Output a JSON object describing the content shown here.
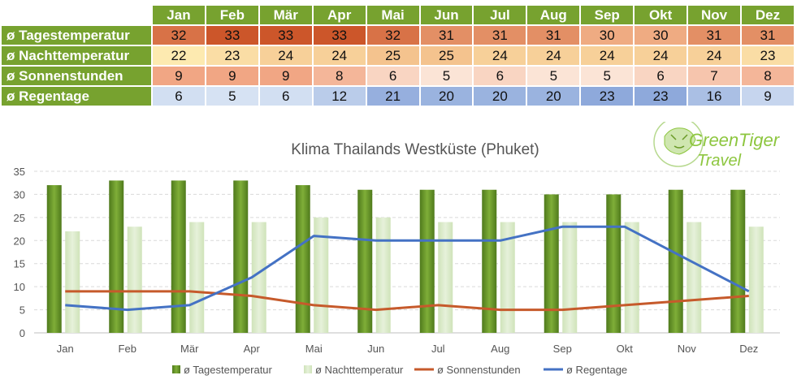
{
  "table": {
    "months": [
      "Jan",
      "Feb",
      "Mär",
      "Apr",
      "Mai",
      "Jun",
      "Jul",
      "Aug",
      "Sep",
      "Okt",
      "Nov",
      "Dez"
    ],
    "rows": [
      {
        "label": "ø Tagestemperatur",
        "values": [
          32,
          33,
          33,
          33,
          32,
          31,
          31,
          31,
          30,
          30,
          31,
          31
        ]
      },
      {
        "label": "ø Nachttemperatur",
        "values": [
          22,
          23,
          24,
          24,
          25,
          25,
          24,
          24,
          24,
          24,
          24,
          23
        ]
      },
      {
        "label": "ø Sonnenstunden",
        "values": [
          9,
          9,
          9,
          8,
          6,
          5,
          6,
          5,
          5,
          6,
          7,
          8
        ]
      },
      {
        "label": "ø Regentage",
        "values": [
          6,
          5,
          6,
          12,
          21,
          20,
          20,
          20,
          23,
          23,
          16,
          9
        ]
      }
    ]
  },
  "logo": {
    "line1": "GreenTiger",
    "line2": "Travel"
  },
  "chart_data": {
    "type": "bar",
    "title": "Klima Thailands Westküste (Phuket)",
    "categories": [
      "Jan",
      "Feb",
      "Mär",
      "Apr",
      "Mai",
      "Jun",
      "Jul",
      "Aug",
      "Sep",
      "Okt",
      "Nov",
      "Dez"
    ],
    "ylim": [
      0,
      35
    ],
    "yticks": [
      0,
      5,
      10,
      15,
      20,
      25,
      30,
      35
    ],
    "grid": true,
    "legend_position": "bottom",
    "series": [
      {
        "name": "ø Tagestemperatur",
        "type": "bar",
        "color": "#6a9a28",
        "values": [
          32,
          33,
          33,
          33,
          32,
          31,
          31,
          31,
          30,
          30,
          31,
          31
        ]
      },
      {
        "name": "ø Nachttemperatur",
        "type": "bar",
        "color": "#d5e8c0",
        "values": [
          22,
          23,
          24,
          24,
          25,
          25,
          24,
          24,
          24,
          24,
          24,
          23
        ]
      },
      {
        "name": "ø Sonnenstunden",
        "type": "line",
        "color": "#c65a2b",
        "values": [
          9,
          9,
          9,
          8,
          6,
          5,
          6,
          5,
          5,
          6,
          7,
          8
        ]
      },
      {
        "name": "ø Regentage",
        "type": "line",
        "color": "#4472c4",
        "values": [
          6,
          5,
          6,
          12,
          21,
          20,
          20,
          20,
          23,
          23,
          16,
          9
        ]
      }
    ]
  }
}
